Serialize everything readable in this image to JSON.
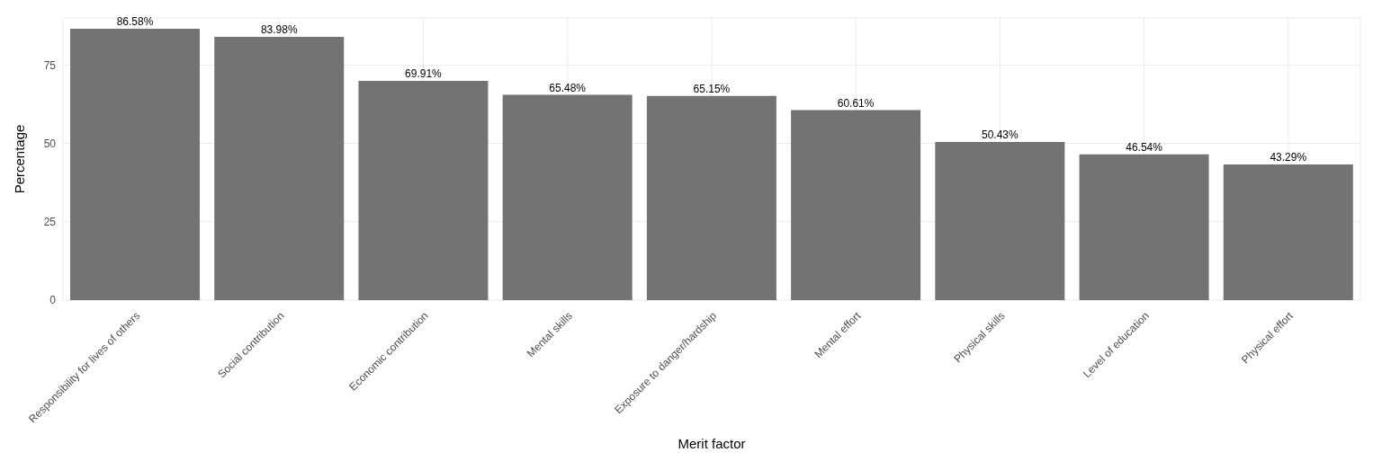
{
  "chart_data": {
    "type": "bar",
    "xlabel": "Merit factor",
    "ylabel": "Percentage",
    "categories": [
      "Responsibility for lives of others",
      "Social contribution",
      "Economic contribution",
      "Mental skills",
      "Exposure to danger/hardship",
      "Mental effort",
      "Physical skills",
      "Level of education",
      "Physical effort"
    ],
    "values": [
      86.58,
      83.98,
      69.91,
      65.48,
      65.15,
      60.61,
      50.43,
      46.54,
      43.29
    ],
    "value_labels": [
      "86.58%",
      "83.98%",
      "69.91%",
      "65.48%",
      "65.15%",
      "60.61%",
      "50.43%",
      "46.54%",
      "43.29%"
    ],
    "color": "#737373",
    "ylim": [
      0,
      90
    ],
    "yticks": [
      0,
      25,
      50,
      75
    ],
    "grid": true,
    "legend": false
  }
}
